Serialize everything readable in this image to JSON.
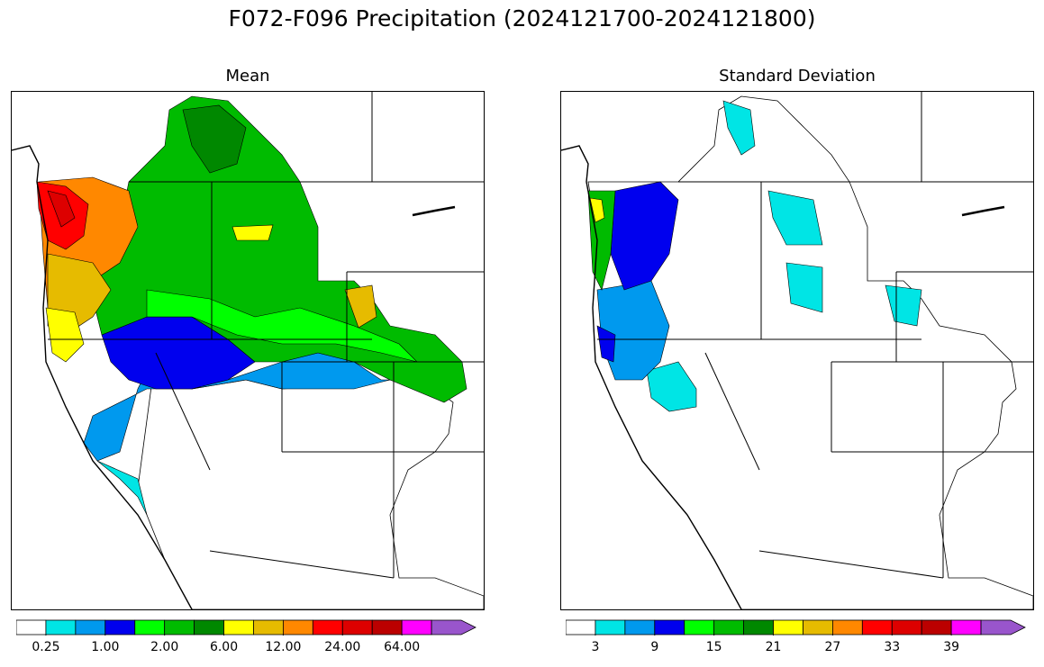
{
  "figure": {
    "title": "F072-F096 Precipitation (2024121700-2024121800)"
  },
  "panels": [
    {
      "title": "Mean",
      "colorbar": {
        "colors": [
          "#ffffff",
          "#00e5e5",
          "#0099ee",
          "#0000ee",
          "#00ff00",
          "#00bb00",
          "#008800",
          "#ffff00",
          "#e6bb00",
          "#ff8800",
          "#ff0000",
          "#dd0000",
          "#bb0000",
          "#ff00ff",
          "#9955cc"
        ],
        "extend": "max",
        "tick_labels": [
          "0.25",
          "1.00",
          "2.00",
          "6.00",
          "12.00",
          "24.00",
          "64.00"
        ]
      }
    },
    {
      "title": "Standard Deviation",
      "colorbar": {
        "colors": [
          "#ffffff",
          "#00e5e5",
          "#0099ee",
          "#0000ee",
          "#00ff00",
          "#00bb00",
          "#008800",
          "#ffff00",
          "#e6bb00",
          "#ff8800",
          "#ff0000",
          "#dd0000",
          "#bb0000",
          "#ff00ff",
          "#9955cc"
        ],
        "extend": "max",
        "tick_labels": [
          "3",
          "9",
          "15",
          "21",
          "27",
          "33",
          "39"
        ]
      }
    }
  ]
}
